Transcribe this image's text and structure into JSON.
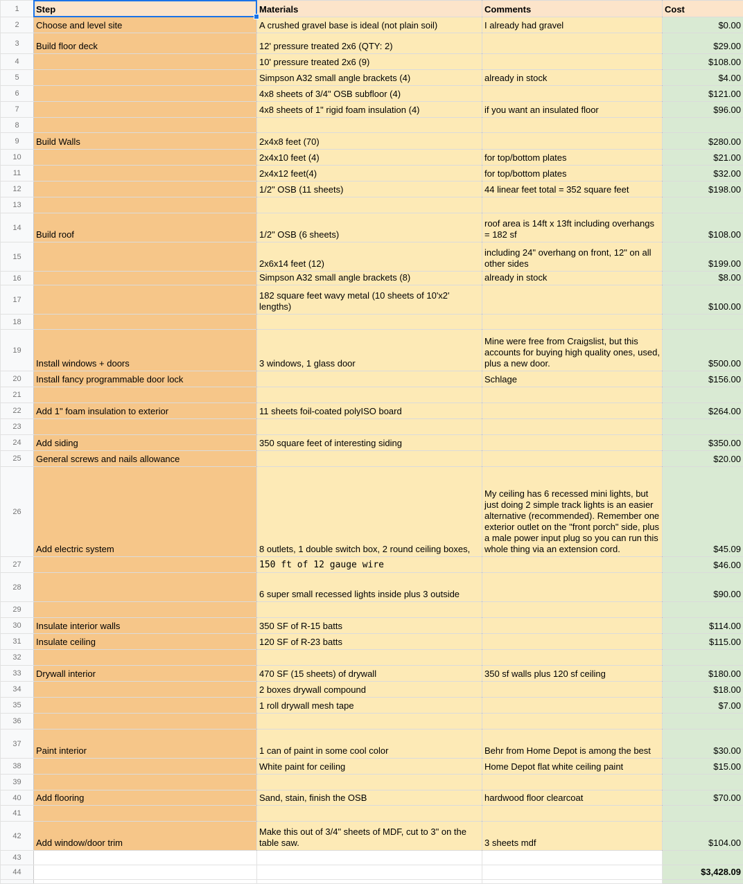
{
  "app": "spreadsheet",
  "selection": {
    "row": "1",
    "column": "Step",
    "cell": "A1"
  },
  "colors": {
    "header_bg": "#fce4ca",
    "step_bg": "#f6c689",
    "yellow_bg": "#fdeab6",
    "green_bg": "#d9ead3",
    "selection_blue": "#1a73e8",
    "gutter_bg": "#f8f9fa"
  },
  "rows": [
    {
      "n": "1",
      "step": "Step",
      "materials": "Materials",
      "comments": "Comments",
      "cost": "Cost",
      "header": true
    },
    {
      "n": "2",
      "step": "Choose and level site",
      "materials": "A crushed gravel base is ideal (not plain soil)",
      "comments": "I already had gravel",
      "cost": "$0.00"
    },
    {
      "n": "3",
      "step": "Build floor deck",
      "materials": "12' pressure treated 2x6 (QTY: 2)",
      "comments": "",
      "cost": "$29.00"
    },
    {
      "n": "4",
      "step": "",
      "materials": "10' pressure treated 2x6 (9)",
      "comments": "",
      "cost": "$108.00"
    },
    {
      "n": "5",
      "step": "",
      "materials": "Simpson A32 small angle brackets (4)",
      "comments": "already in stock",
      "cost": "$4.00"
    },
    {
      "n": "6",
      "step": "",
      "materials": "4x8 sheets of 3/4\" OSB subfloor (4)",
      "comments": "",
      "cost": "$121.00"
    },
    {
      "n": "7",
      "step": "",
      "materials": "4x8 sheets of 1\" rigid foam insulation (4)",
      "comments": "if you want an insulated floor",
      "cost": "$96.00"
    },
    {
      "n": "8",
      "step": "",
      "materials": "",
      "comments": "",
      "cost": ""
    },
    {
      "n": "9",
      "step": "Build Walls",
      "materials": "2x4x8 feet (70)",
      "comments": "",
      "cost": "$280.00"
    },
    {
      "n": "10",
      "step": "",
      "materials": "2x4x10 feet (4)",
      "comments": "for top/bottom plates",
      "cost": "$21.00"
    },
    {
      "n": "11",
      "step": "",
      "materials": "2x4x12 feet(4)",
      "comments": "for top/bottom plates",
      "cost": "$32.00"
    },
    {
      "n": "12",
      "step": "",
      "materials": "1/2\" OSB (11 sheets)",
      "comments": "44 linear feet total = 352 square feet",
      "cost": "$198.00"
    },
    {
      "n": "13",
      "step": "",
      "materials": "",
      "comments": "",
      "cost": ""
    },
    {
      "n": "14",
      "step": "Build roof",
      "materials": "1/2\" OSB (6 sheets)",
      "comments": "roof area is 14ft x 13ft including overhangs = 182 sf",
      "cost": "$108.00"
    },
    {
      "n": "15",
      "step": "",
      "materials": "2x6x14 feet (12)",
      "comments": "including 24\" overhang on front, 12\" on all other sides",
      "cost": "$199.00"
    },
    {
      "n": "16",
      "step": "",
      "materials": "Simpson A32 small angle brackets (8)",
      "comments": "already in stock",
      "cost": "$8.00"
    },
    {
      "n": "17",
      "step": "",
      "materials": "182 square feet wavy metal (10 sheets of 10'x2' lengths)",
      "comments": "",
      "cost": "$100.00"
    },
    {
      "n": "18",
      "step": "",
      "materials": "",
      "comments": "",
      "cost": ""
    },
    {
      "n": "19",
      "step": "Install windows + doors",
      "materials": "3 windows, 1 glass door",
      "comments": "Mine were free from Craigslist, but this accounts for buying high quality ones, used, plus a new door.",
      "cost": "$500.00"
    },
    {
      "n": "20",
      "step": "Install fancy programmable door lock",
      "materials": "",
      "comments": "Schlage",
      "cost": "$156.00"
    },
    {
      "n": "21",
      "step": "",
      "materials": "",
      "comments": "",
      "cost": ""
    },
    {
      "n": "22",
      "step": "Add 1\" foam insulation to exterior",
      "materials": "11 sheets foil-coated polyISO board",
      "comments": "",
      "cost": "$264.00"
    },
    {
      "n": "23",
      "step": "",
      "materials": "",
      "comments": "",
      "cost": ""
    },
    {
      "n": "24",
      "step": "Add siding",
      "materials": "350 square feet of interesting siding",
      "comments": "",
      "cost": "$350.00"
    },
    {
      "n": "25",
      "step": "General screws and nails allowance",
      "materials": "",
      "comments": "",
      "cost": "$20.00"
    },
    {
      "n": "26",
      "step": "Add electric system",
      "materials": "8 outlets, 1 double switch box, 2 round ceiling boxes,",
      "comments": "My ceiling has 6 recessed mini lights, but just doing 2 simple track lights is an easier alternative (recommended). Remember one exterior outlet on the \"front porch\" side, plus a male power input plug so you can run this whole thing via an extension cord.",
      "cost": "$45.09"
    },
    {
      "n": "27",
      "step": "",
      "materials": "150 ft of 12 gauge wire",
      "comments": "",
      "cost": "$46.00",
      "mono": true
    },
    {
      "n": "28",
      "step": "",
      "materials": "6 super small recessed lights inside plus 3 outside",
      "comments": "",
      "cost": "$90.00"
    },
    {
      "n": "29",
      "step": "",
      "materials": "",
      "comments": "",
      "cost": ""
    },
    {
      "n": "30",
      "step": "Insulate interior walls",
      "materials": "350 SF of R-15 batts",
      "comments": "",
      "cost": "$114.00"
    },
    {
      "n": "31",
      "step": "Insulate ceiling",
      "materials": "120 SF of R-23 batts",
      "comments": "",
      "cost": "$115.00"
    },
    {
      "n": "32",
      "step": "",
      "materials": "",
      "comments": "",
      "cost": ""
    },
    {
      "n": "33",
      "step": "Drywall interior",
      "materials": "470 SF (15 sheets) of drywall",
      "comments": "350 sf walls plus 120 sf ceiling",
      "cost": "$180.00"
    },
    {
      "n": "34",
      "step": "",
      "materials": "2 boxes drywall compound",
      "comments": "",
      "cost": "$18.00"
    },
    {
      "n": "35",
      "step": "",
      "materials": "1 roll drywall mesh tape",
      "comments": "",
      "cost": "$7.00"
    },
    {
      "n": "36",
      "step": "",
      "materials": "",
      "comments": "",
      "cost": ""
    },
    {
      "n": "37",
      "step": "Paint interior",
      "materials": " 1 can of paint in some cool color",
      "comments": "Behr from Home Depot is among the best",
      "cost": "$30.00"
    },
    {
      "n": "38",
      "step": "",
      "materials": "White paint for ceiling",
      "comments": "Home Depot flat white ceiling paint",
      "cost": "$15.00"
    },
    {
      "n": "39",
      "step": "",
      "materials": "",
      "comments": "",
      "cost": ""
    },
    {
      "n": "40",
      "step": "Add flooring",
      "materials": "Sand, stain, finish the OSB",
      "comments": "hardwood floor clearcoat",
      "cost": "$70.00"
    },
    {
      "n": "41",
      "step": "",
      "materials": "",
      "comments": "",
      "cost": ""
    },
    {
      "n": "42",
      "step": "Add window/door trim",
      "materials": "Make this out of 3/4\" sheets of MDF, cut to 3\" on the table saw.",
      "comments": "3 sheets mdf",
      "cost": "$104.00"
    },
    {
      "n": "43",
      "step": "",
      "materials": "",
      "comments": "",
      "cost": "",
      "plain": true
    },
    {
      "n": "44",
      "step": "",
      "materials": "",
      "comments": "",
      "cost": "$3,428.09",
      "plain": true,
      "bold_cost": true
    }
  ]
}
